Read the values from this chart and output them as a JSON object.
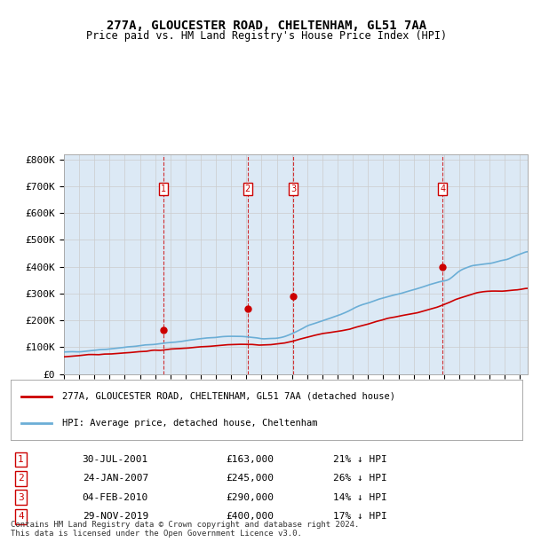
{
  "title": "277A, GLOUCESTER ROAD, CHELTENHAM, GL51 7AA",
  "subtitle": "Price paid vs. HM Land Registry's House Price Index (HPI)",
  "ylabel_ticks": [
    "£0",
    "£100K",
    "£200K",
    "£300K",
    "£400K",
    "£500K",
    "£600K",
    "£700K",
    "£800K"
  ],
  "ytick_values": [
    0,
    100000,
    200000,
    300000,
    400000,
    500000,
    600000,
    700000,
    800000
  ],
  "ylim": [
    0,
    820000
  ],
  "xlim_start": 1995.0,
  "xlim_end": 2025.5,
  "legend_line1": "277A, GLOUCESTER ROAD, CHELTENHAM, GL51 7AA (detached house)",
  "legend_line2": "HPI: Average price, detached house, Cheltenham",
  "transactions": [
    {
      "num": 1,
      "date": "30-JUL-2001",
      "year": 2001.57,
      "price": 163000,
      "pct": "21% ↓ HPI"
    },
    {
      "num": 2,
      "date": "24-JAN-2007",
      "year": 2007.07,
      "price": 245000,
      "pct": "26% ↓ HPI"
    },
    {
      "num": 3,
      "date": "04-FEB-2010",
      "year": 2010.09,
      "price": 290000,
      "pct": "14% ↓ HPI"
    },
    {
      "num": 4,
      "date": "29-NOV-2019",
      "year": 2019.91,
      "price": 400000,
      "pct": "17% ↓ HPI"
    }
  ],
  "footer": "Contains HM Land Registry data © Crown copyright and database right 2024.\nThis data is licensed under the Open Government Licence v3.0.",
  "hpi_color": "#6baed6",
  "price_color": "#cc0000",
  "vline_color": "#cc0000",
  "background_color": "#dce9f5",
  "plot_bg": "#ffffff",
  "grid_color": "#cccccc"
}
